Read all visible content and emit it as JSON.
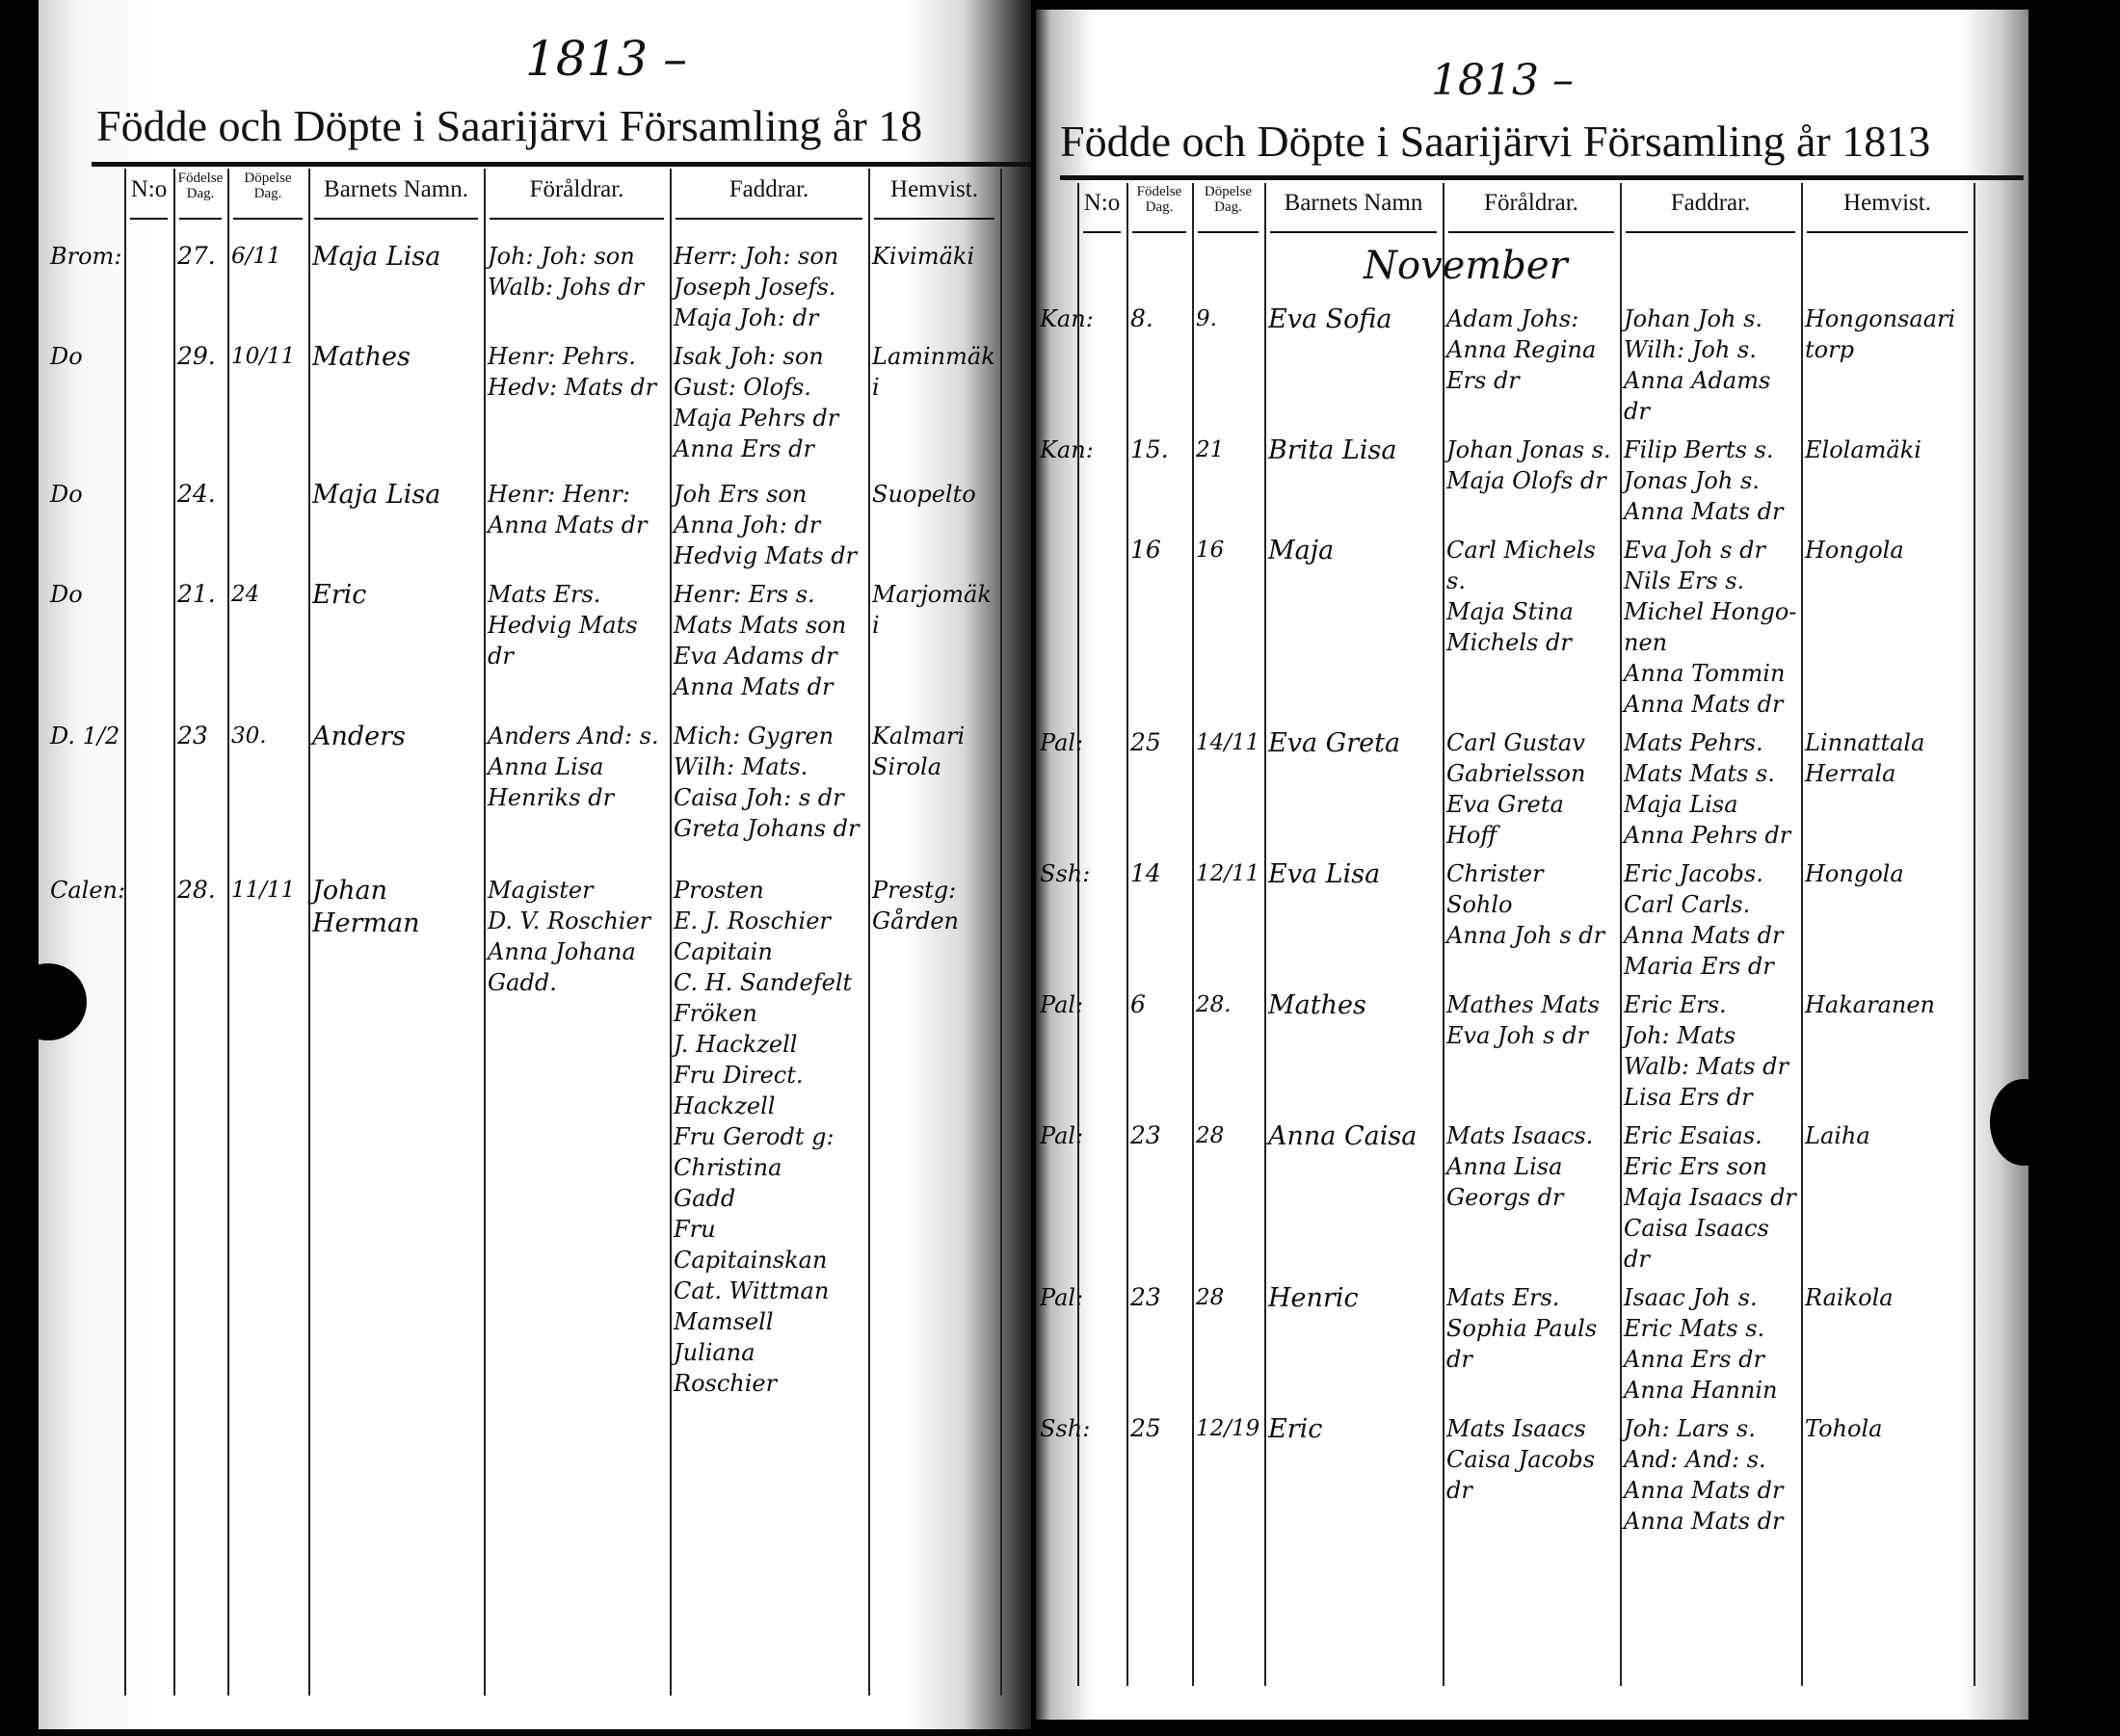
{
  "left_page": {
    "year_note": "1813 –",
    "title": "Födde och Döpte i Saarijärvi Församling år 18",
    "columns": [
      "N:o",
      "Födelse Dag.",
      "Döpelse Dag.",
      "Barnets Namn.",
      "Föråldrar.",
      "Faddrar.",
      "Hemvist."
    ],
    "entries": [
      {
        "note": "Brom:",
        "born": "27.",
        "baptized": "6/11",
        "child": "Maja Lisa",
        "parents": [
          "Joh: Joh: son",
          "Walb: Johs dr"
        ],
        "godparents": [
          "Herr: Joh: son",
          "Joseph Josefs.",
          "Maja Joh: dr"
        ],
        "residence": [
          "Kivimäki"
        ]
      },
      {
        "note": "Do",
        "born": "29.",
        "baptized": "10/11",
        "child": "Mathes",
        "parents": [
          "Henr: Pehrs.",
          "Hedv: Mats dr"
        ],
        "godparents": [
          "Isak Joh: son",
          "Gust: Olofs.",
          "Maja Pehrs dr",
          "Anna Ers dr"
        ],
        "residence": [
          "Laminmäki"
        ]
      },
      {
        "note": "Do",
        "born": "24.",
        "baptized": "",
        "child": "Maja Lisa",
        "parents": [
          "Henr: Henr:",
          "Anna Mats dr"
        ],
        "godparents": [
          "Joh Ers son",
          "Anna Joh: dr",
          "Hedvig Mats dr"
        ],
        "residence": [
          "Suopelto"
        ]
      },
      {
        "note": "Do",
        "born": "21.",
        "baptized": "24",
        "child": "Eric",
        "parents": [
          "Mats Ers.",
          "Hedvig Mats dr"
        ],
        "godparents": [
          "Henr: Ers s.",
          "Mats Mats son",
          "Eva Adams dr",
          "Anna Mats dr"
        ],
        "residence": [
          "Marjomäki"
        ]
      },
      {
        "note": "D. 1/2",
        "born": "23",
        "baptized": "30.",
        "child": "Anders",
        "parents": [
          "Anders And: s.",
          "Anna Lisa",
          "Henriks dr"
        ],
        "godparents": [
          "Mich: Gygren",
          "Wilh: Mats.",
          "Caisa Joh: s dr",
          "Greta Johans dr"
        ],
        "residence": [
          "Kalmari",
          "Sirola"
        ]
      },
      {
        "note": "Calen:",
        "born": "28.",
        "baptized": "11/11",
        "child": "Johan Herman",
        "parents": [
          "Magister",
          "D. V. Roschier",
          "Anna Johana",
          "Gadd."
        ],
        "godparents": [
          "Prosten",
          "E. J. Roschier",
          "Capitain",
          "C. H. Sandefelt",
          "Fröken",
          "J. Hackzell",
          "Fru Direct.",
          "Hackzell",
          "Fru Gerodt g:",
          "Christina",
          "Gadd",
          "Fru Capitainskan",
          "Cat. Wittman",
          "Mamsell",
          "Juliana Roschier"
        ],
        "residence": [
          "Prestg:",
          "Gården"
        ]
      }
    ]
  },
  "right_page": {
    "year_note": "1813 –",
    "title": "Födde och Döpte i Saarijärvi Församling år 1813",
    "columns": [
      "N:o",
      "Födelse Dag.",
      "Döpelse Dag.",
      "Barnets Namn",
      "Föråldrar.",
      "Faddrar.",
      "Hemvist."
    ],
    "month": "November",
    "entries": [
      {
        "note": "Kan:",
        "born": "8.",
        "baptized": "9.",
        "child": "Eva Sofia",
        "parents": [
          "Adam Johs:",
          "Anna Regina",
          "Ers dr"
        ],
        "godparents": [
          "Johan Joh s.",
          "Wilh: Joh s.",
          "Anna Adams dr"
        ],
        "residence": [
          "Hongonsaari torp"
        ]
      },
      {
        "note": "Kan:",
        "born": "15.",
        "baptized": "21",
        "child": "Brita Lisa",
        "parents": [
          "Johan Jonas s.",
          "Maja Olofs dr"
        ],
        "godparents": [
          "Filip Berts s.",
          "Jonas Joh s.",
          "Anna Mats dr"
        ],
        "residence": [
          "Elolamäki"
        ]
      },
      {
        "note": "",
        "born": "16",
        "baptized": "16",
        "child": "Maja",
        "parents": [
          "Carl Michels s.",
          "Maja Stina",
          "Michels dr"
        ],
        "godparents": [
          "Eva Joh s dr",
          "Nils Ers s.",
          "Michel Hongo-",
          "nen",
          "Anna Tommin",
          "Anna Mats dr"
        ],
        "residence": [
          "Hongola"
        ]
      },
      {
        "note": "Pal:",
        "born": "25",
        "baptized": "14/11",
        "child": "Eva Greta",
        "parents": [
          "Carl Gustav",
          "Gabrielsson",
          "Eva Greta Hoff"
        ],
        "godparents": [
          "Mats Pehrs.",
          "Mats Mats s.",
          "Maja Lisa",
          "Anna Pehrs dr"
        ],
        "residence": [
          "Linnattala",
          "Herrala"
        ]
      },
      {
        "note": "Ssh:",
        "born": "14",
        "baptized": "12/11",
        "child": "Eva Lisa",
        "parents": [
          "Christer Sohlo",
          "Anna Joh s dr"
        ],
        "godparents": [
          "Eric Jacobs.",
          "Carl Carls.",
          "Anna Mats dr",
          "Maria Ers dr"
        ],
        "residence": [
          "Hongola"
        ]
      },
      {
        "note": "Pal:",
        "born": "6",
        "baptized": "28.",
        "child": "Mathes",
        "parents": [
          "Mathes Mats",
          "Eva Joh s dr"
        ],
        "godparents": [
          "Eric Ers.",
          "Joh: Mats",
          "Walb: Mats dr",
          "Lisa Ers dr"
        ],
        "residence": [
          "Hakaranen"
        ]
      },
      {
        "note": "Pal:",
        "born": "23",
        "baptized": "28",
        "child": "Anna Caisa",
        "parents": [
          "Mats Isaacs.",
          "Anna Lisa",
          "Georgs dr"
        ],
        "godparents": [
          "Eric Esaias.",
          "Eric Ers son",
          "Maja Isaacs dr",
          "Caisa Isaacs dr"
        ],
        "residence": [
          "Laiha"
        ]
      },
      {
        "note": "Pal:",
        "born": "23",
        "baptized": "28",
        "child": "Henric",
        "parents": [
          "Mats Ers.",
          "Sophia Pauls dr"
        ],
        "godparents": [
          "Isaac Joh s.",
          "Eric Mats s.",
          "Anna Ers dr",
          "Anna Hannin"
        ],
        "residence": [
          "Raikola"
        ]
      },
      {
        "note": "Ssh:",
        "born": "25",
        "baptized": "12/19",
        "child": "Eric",
        "parents": [
          "Mats Isaacs",
          "Caisa Jacobs dr"
        ],
        "godparents": [
          "Joh: Lars s.",
          "And: And: s.",
          "Anna Mats dr",
          "Anna Mats dr"
        ],
        "residence": [
          "Tohola"
        ]
      }
    ]
  }
}
